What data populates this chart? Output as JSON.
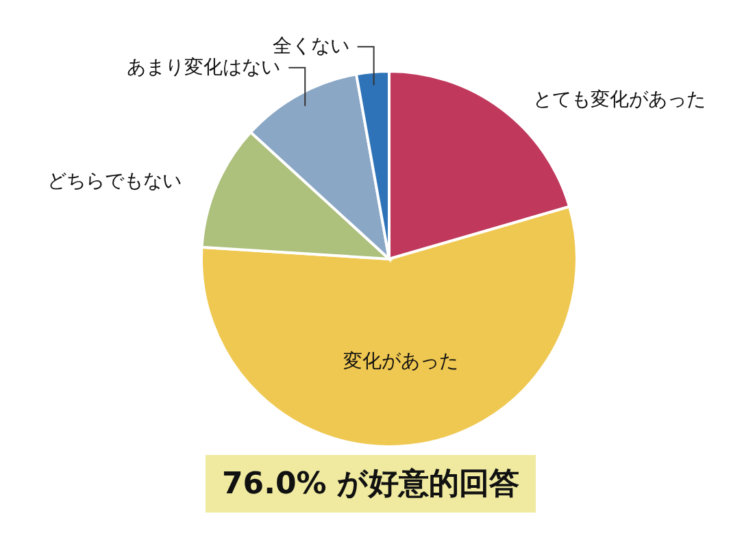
{
  "chart_data": {
    "type": "pie",
    "categories": [
      "とても変化があった",
      "変化があった",
      "どちらでもない",
      "あまり変化はない",
      "全くない"
    ],
    "values": [
      20.5,
      55.5,
      10.8,
      10.4,
      2.8
    ],
    "colors": [
      "#c0395d",
      "#efc851",
      "#adc07c",
      "#8aa7c6",
      "#2e73b8"
    ],
    "annotations": [
      "76.0% が好意的回答"
    ]
  }
}
